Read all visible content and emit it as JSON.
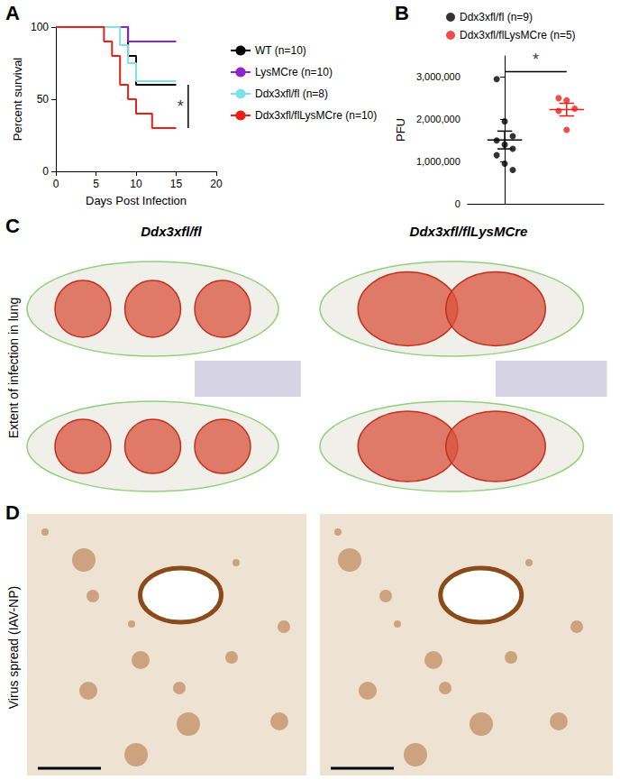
{
  "chart_data": [
    {
      "panel": "A",
      "type": "line",
      "line_style": "step",
      "x_label": "Days Post Infection",
      "y_label": "Percent survival",
      "xlim": [
        0,
        20
      ],
      "xticks": [
        0,
        5,
        10,
        15,
        20
      ],
      "ylim": [
        0,
        100
      ],
      "yticks": [
        0,
        50,
        100
      ],
      "legend": "right",
      "series": [
        {
          "name": "WT (n=10)",
          "color": "#000000",
          "x": [
            0,
            9,
            10,
            15
          ],
          "values": [
            100,
            80,
            60,
            60
          ]
        },
        {
          "name": "LysMCre (n=10)",
          "color": "#8e24c9",
          "x": [
            0,
            9,
            15
          ],
          "values": [
            100,
            90,
            90
          ]
        },
        {
          "name": "Ddx3xfl/fl (n=8)",
          "color": "#7fe0e6",
          "x": [
            0,
            8,
            9,
            10,
            15
          ],
          "values": [
            100,
            87.5,
            75,
            62.5,
            62.5
          ]
        },
        {
          "name": "Ddx3xfl/flLysMCre (n=10)",
          "color": "#e8201a",
          "x": [
            0,
            6,
            7,
            8,
            9,
            10,
            12,
            15
          ],
          "values": [
            100,
            90,
            80,
            60,
            50,
            40,
            30,
            30
          ]
        }
      ],
      "annotations": [
        {
          "text": "*",
          "between": [
            "WT (n=10)",
            "Ddx3xfl/flLysMCre (n=10)"
          ]
        }
      ]
    },
    {
      "panel": "B",
      "type": "scatter",
      "y_label": "PFU",
      "ylim": [
        0,
        3500000
      ],
      "yticks": [
        0,
        1000000,
        2000000,
        3000000
      ],
      "tick_labels": "y",
      "legend": "top",
      "series": [
        {
          "name": "Ddx3xfl/fl (n=9)",
          "color": "#000000",
          "values": [
            2950000,
            1950000,
            1600000,
            1500000,
            1400000,
            1300000,
            1150000,
            950000,
            800000
          ],
          "mean": 1510000,
          "sem": 210000
        },
        {
          "name": "Ddx3xfl/flLysMCre (n=5)",
          "color": "#e8201a",
          "values": [
            2500000,
            2450000,
            2250000,
            2200000,
            1750000
          ],
          "mean": 2230000,
          "sem": 150000
        }
      ],
      "annotations": [
        {
          "text": "*",
          "between": [
            "Ddx3xfl/fl (n=9)",
            "Ddx3xfl/flLysMCre (n=5)"
          ]
        }
      ]
    }
  ],
  "panels": {
    "C": {
      "label": "C",
      "row_label": "Extent of infection in lung",
      "columns": [
        "Ddx3xfl/fl",
        "Ddx3xfl/flLysMCre"
      ]
    },
    "D": {
      "label": "D",
      "row_label": "Virus spread (IAV-NP)"
    }
  }
}
